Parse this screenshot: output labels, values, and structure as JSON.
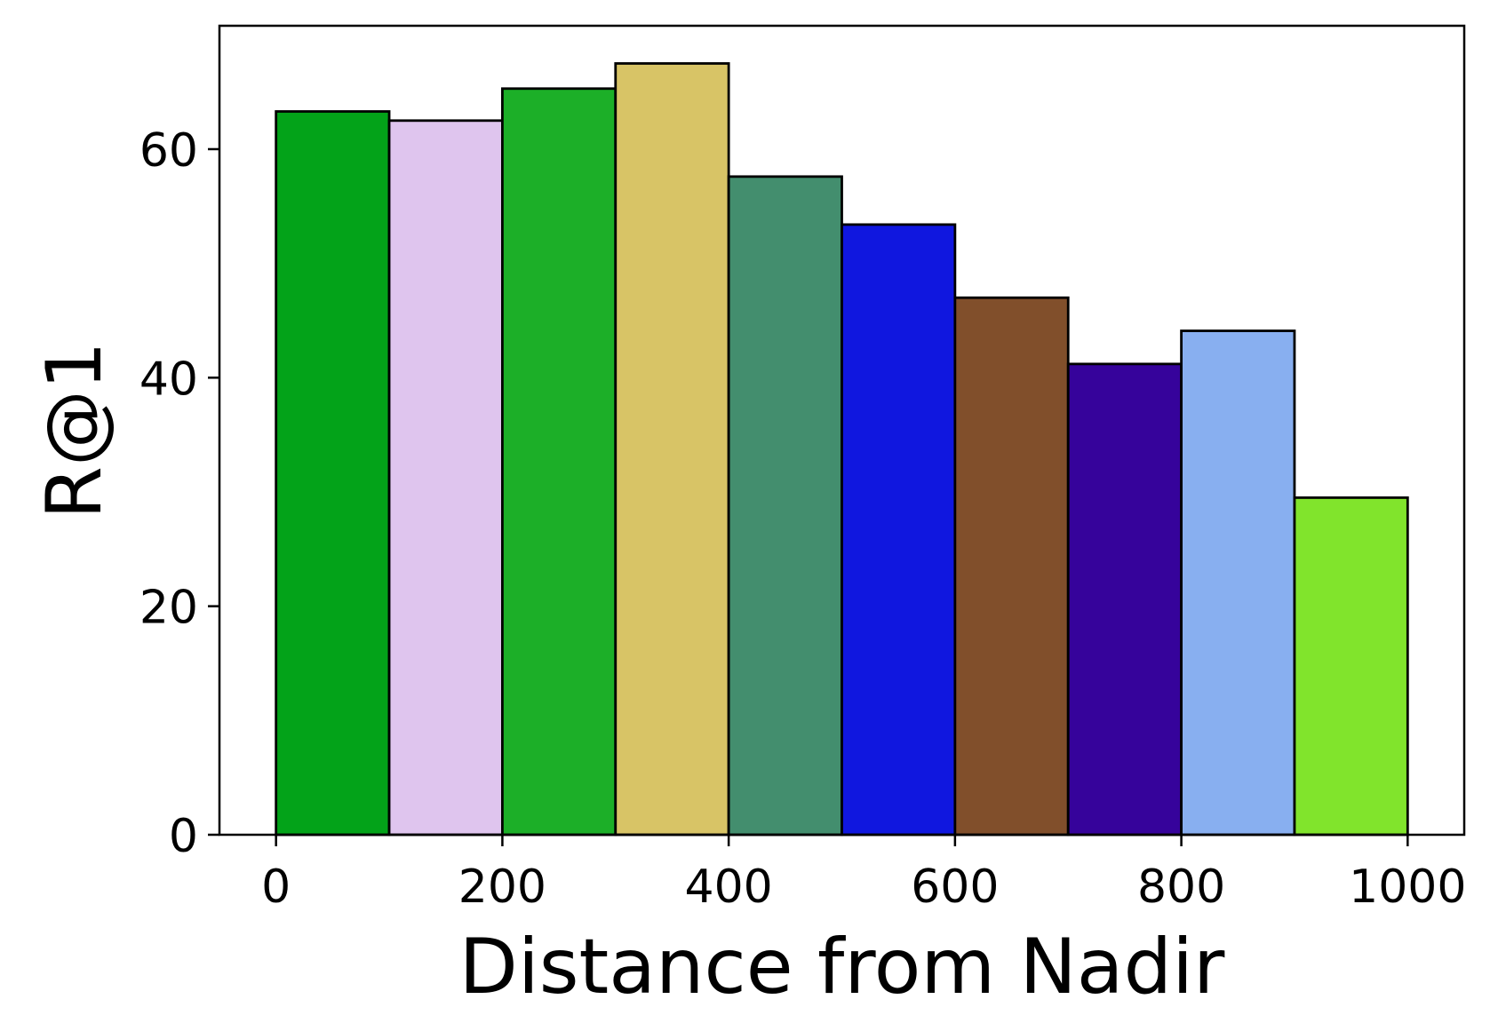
{
  "chart_data": {
    "type": "bar",
    "title": "",
    "xlabel": "Distance from Nadir",
    "ylabel": "R@1",
    "x_bin_edges": [
      0,
      100,
      200,
      300,
      400,
      500,
      600,
      700,
      800,
      900,
      1000
    ],
    "values": [
      63.3,
      62.5,
      65.3,
      67.5,
      57.6,
      53.4,
      47.0,
      41.2,
      44.1,
      29.5
    ],
    "bar_colors": [
      "#03a319",
      "#dfc5ee",
      "#1caf28",
      "#d8c466",
      "#438e6e",
      "#1017df",
      "#814f2b",
      "#36039b",
      "#88aff0",
      "#81e42c"
    ],
    "edge_color": "#000000",
    "xlim": [
      -50,
      1050
    ],
    "ylim": [
      0,
      70.8
    ],
    "x_ticks": [
      0,
      200,
      400,
      600,
      800,
      1000
    ],
    "y_ticks": [
      0,
      20,
      40,
      60
    ],
    "x_tick_labels": [
      "0",
      "200",
      "400",
      "600",
      "800",
      "1000"
    ],
    "y_tick_labels": [
      "0",
      "20",
      "40",
      "60"
    ],
    "grid": false,
    "legend": "none"
  }
}
